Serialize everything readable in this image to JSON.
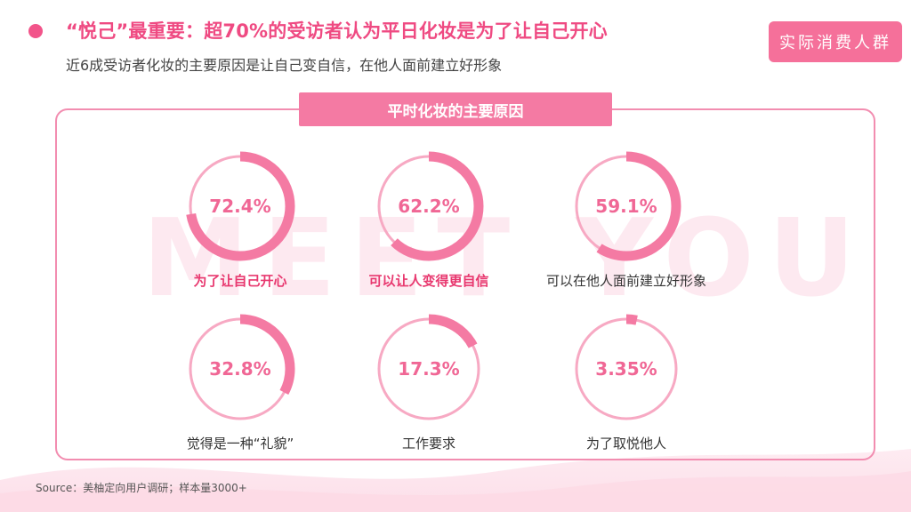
{
  "header": {
    "title": "“悦己”最重要：超70%的受访者认为平日化妆是为了让自己开心",
    "subtitle": "近6成受访者化妆的主要原因是让自己变自信，在他人面前建立好形象",
    "brand": "实际消费人群"
  },
  "panel": {
    "title": "平时化妆的主要原因",
    "watermark": "MEET YOU"
  },
  "chart_data": {
    "type": "pie",
    "title": "平时化妆的主要原因",
    "items": [
      {
        "label": "为了让自己开心",
        "value": 72.4,
        "display": "72.4%",
        "emphasis": true
      },
      {
        "label": "可以让人变得更自信",
        "value": 62.2,
        "display": "62.2%",
        "emphasis": true
      },
      {
        "label": "可以在他人面前建立好形象",
        "value": 59.1,
        "display": "59.1%",
        "emphasis": false
      },
      {
        "label": "觉得是一种“礼貌”",
        "value": 32.8,
        "display": "32.8%",
        "emphasis": false
      },
      {
        "label": "工作要求",
        "value": 17.3,
        "display": "17.3%",
        "emphasis": false
      },
      {
        "label": "为了取悦他人",
        "value": 3.35,
        "display": "3.35%",
        "emphasis": false
      }
    ]
  },
  "footer": {
    "source": "Source：美柚定向用户调研；样本量3000+"
  },
  "colors": {
    "accent": "#f2548a",
    "ring": "#f47aa3",
    "track": "#f7a9c3",
    "label_emphasis": "#e8386f",
    "label_normal": "#333333",
    "percent": "#f06795"
  }
}
